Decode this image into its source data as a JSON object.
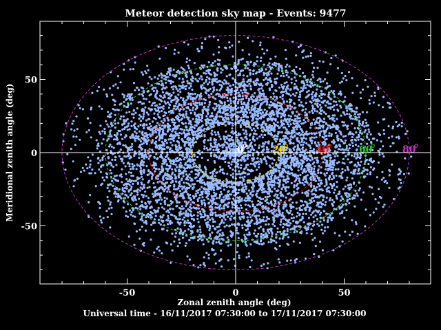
{
  "chart_data": {
    "type": "scatter",
    "title": "Meteor detection sky map - Events: 9477",
    "xlabel": "Zonal zenith angle (deg)",
    "ylabel": "Meridional zenith angle (deg)",
    "subtitle": "Universal time - 16/11/2017 07:30:00 to 17/11/2017 07:30:00",
    "xlim": [
      -90,
      90
    ],
    "ylim": [
      -90,
      90
    ],
    "x_ticks": [
      "-50",
      "0",
      "50"
    ],
    "y_ticks": [
      "50",
      "0",
      "-50"
    ],
    "x_tick_values": [
      -50,
      0,
      50
    ],
    "y_tick_values": [
      50,
      0,
      -50
    ],
    "grid": false,
    "point_color": "#99bbff",
    "events": 9477,
    "zenith_rings": [
      {
        "label": "0",
        "angle": 0,
        "color": "#ffffff"
      },
      {
        "label": "20",
        "angle": 20,
        "color": "#ffd700"
      },
      {
        "label": "40",
        "angle": 40,
        "color": "#ff1a1a"
      },
      {
        "label": "60",
        "angle": 60,
        "color": "#22cc22"
      },
      {
        "label": "80",
        "angle": 80,
        "color": "#cc33cc"
      }
    ],
    "density_profile": "points fill zenith range 0-80 deg, densest between 20 and 60 deg, sparse near zenith"
  }
}
